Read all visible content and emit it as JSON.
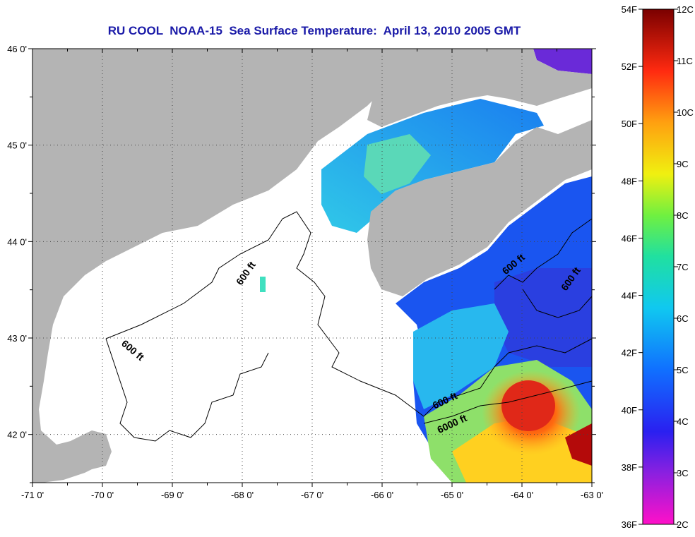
{
  "title": "RU COOL  NOAA-15  Sea Surface Temperature:  April 13, 2010 2005 GMT",
  "map": {
    "lon_range": [
      -71,
      -63
    ],
    "lat_range": [
      41.5,
      46
    ],
    "lon_ticks": [
      "-71 0'",
      "-70 0'",
      "-69 0'",
      "-68 0'",
      "-67 0'",
      "-66 0'",
      "-65 0'",
      "-64 0'",
      "-63 0'"
    ],
    "lat_ticks": [
      "46 0'",
      "45 0'",
      "44 0'",
      "43 0'",
      "42 0'"
    ],
    "contour_labels": [
      "600 ft",
      "600 ft",
      "600 ft",
      "600 ft",
      "600 ft",
      "6000 ft"
    ],
    "colors": {
      "land": "#b4b4b4",
      "cloud": "#ffffff",
      "grid": "#444444"
    }
  },
  "colorbar": {
    "fahrenheit_labels": [
      "54F",
      "52F",
      "50F",
      "48F",
      "46F",
      "44F",
      "42F",
      "40F",
      "38F",
      "36F"
    ],
    "celsius_labels": [
      "12C",
      "11C",
      "10C",
      "9C",
      "8C",
      "7C",
      "6C",
      "5C",
      "4C",
      "3C",
      "2C"
    ],
    "fahrenheit_range": [
      36,
      54
    ],
    "celsius_range": [
      2,
      12
    ]
  }
}
